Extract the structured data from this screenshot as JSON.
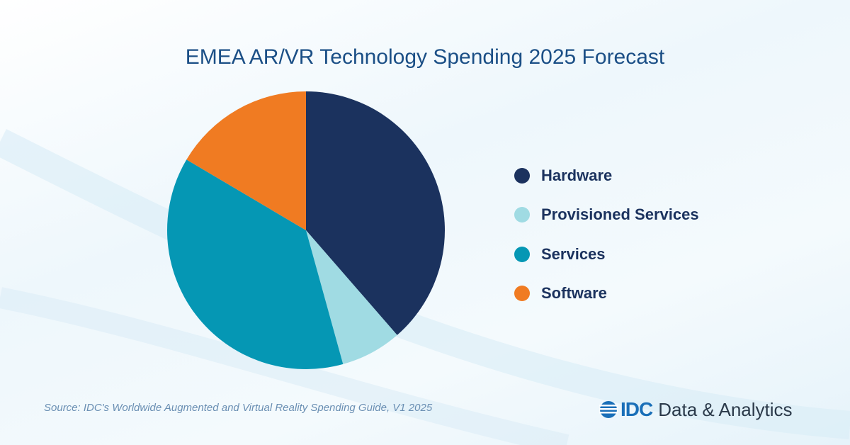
{
  "chart_data": {
    "type": "pie",
    "title": "EMEA AR/VR Technology Spending 2025 Forecast",
    "slices": [
      {
        "label": "Hardware",
        "value": 38.6,
        "color": "#1b325e"
      },
      {
        "label": "Provisioned Services",
        "value": 7.1,
        "color": "#a0dbe3"
      },
      {
        "label": "Services",
        "value": 37.8,
        "color": "#0597b4"
      },
      {
        "label": "Software",
        "value": 16.5,
        "color": "#f07b22"
      }
    ],
    "start": "12 o'clock, clockwise",
    "legend_position": "right"
  },
  "source": "Source: IDC's Worldwide Augmented and Virtual Reality Spending Guide, V1 2025",
  "logo": {
    "brand": "IDC",
    "text": "Data & Analytics"
  }
}
